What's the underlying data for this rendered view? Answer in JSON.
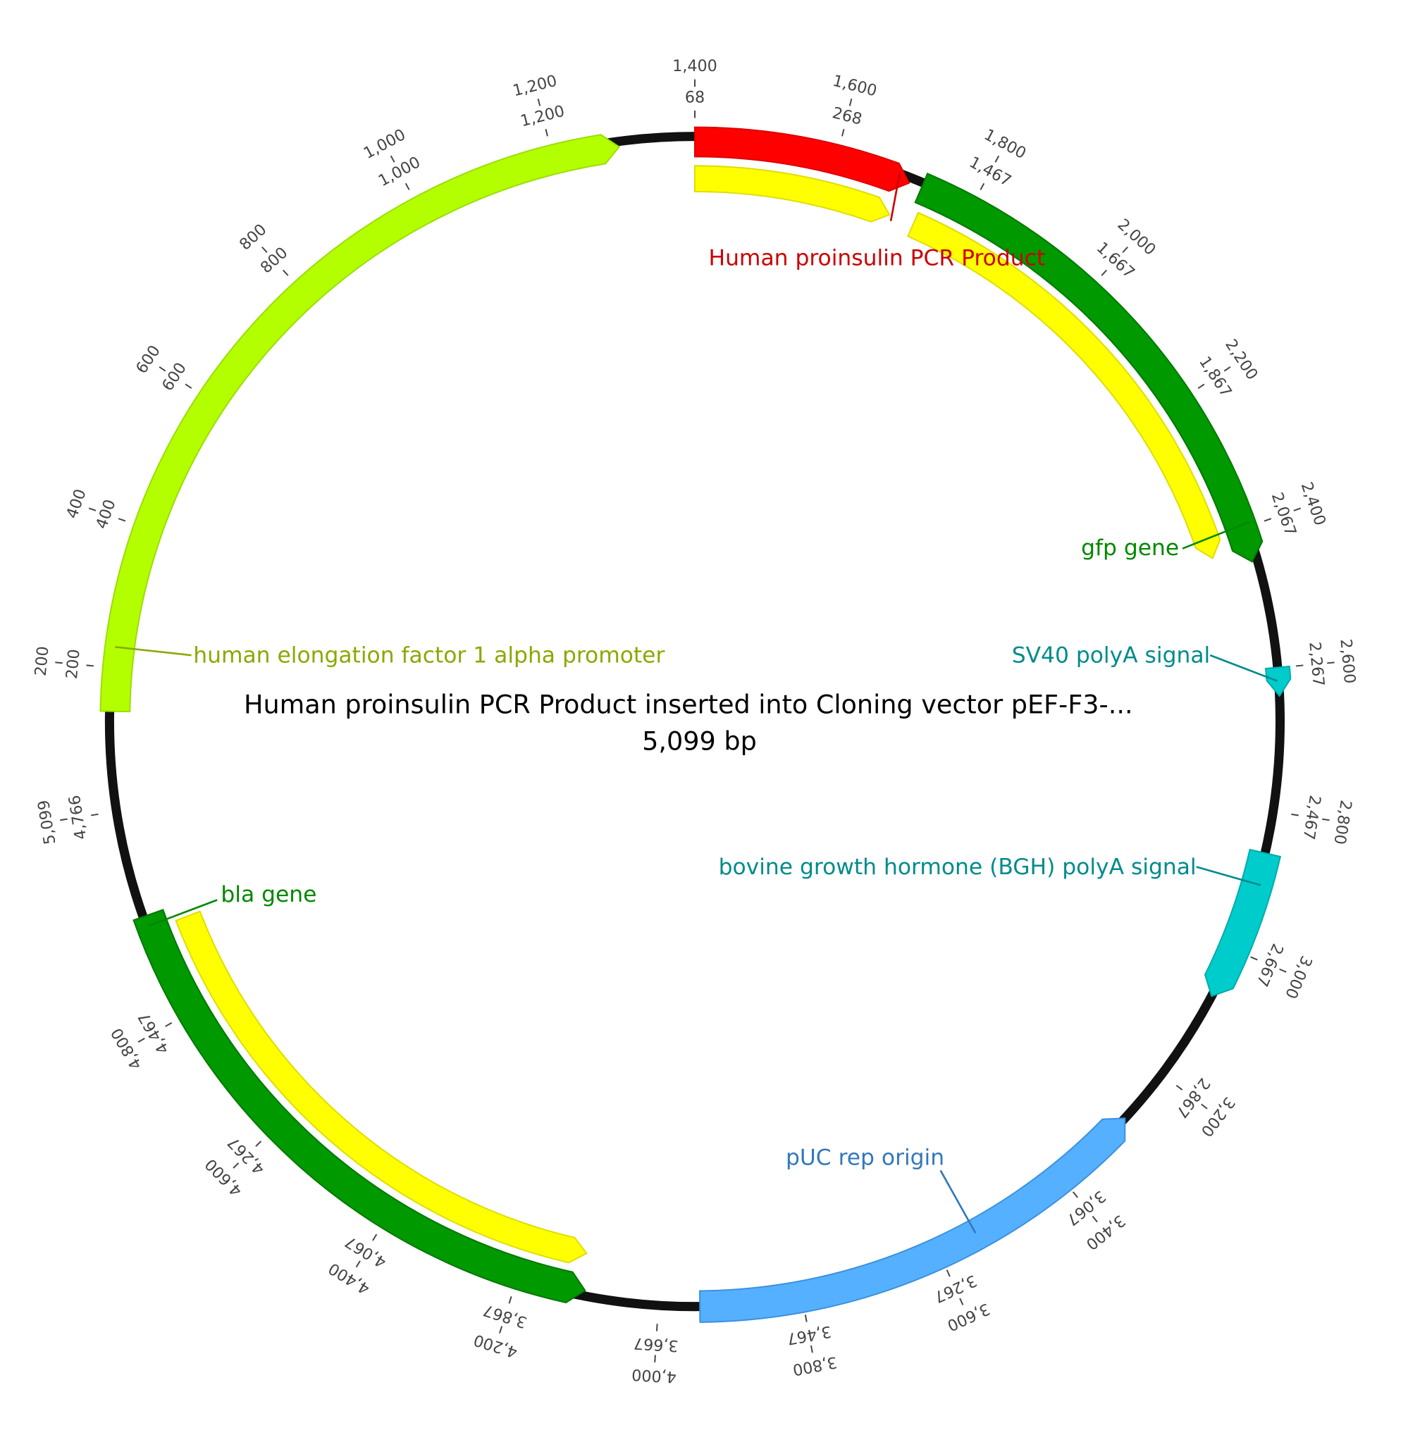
{
  "title": "Human proinsulin PCR Product inserted into Cloning vector pEF-F3-...",
  "size": "5,099 bp",
  "features": [
    {
      "label": "Human proinsulin PCR Product"
    },
    {
      "label": "gfp gene"
    },
    {
      "label": "SV40 polyA signal"
    },
    {
      "label": "bovine growth hormone (BGH) polyA signal"
    },
    {
      "label": "pUC rep origin"
    },
    {
      "label": "bla gene"
    },
    {
      "label": "human elongation factor 1 alpha promoter"
    }
  ],
  "ticks": [
    {
      "outer": "200",
      "inner": "200"
    },
    {
      "outer": "400",
      "inner": "400"
    },
    {
      "outer": "600",
      "inner": "600"
    },
    {
      "outer": "800",
      "inner": "800"
    },
    {
      "outer": "1,000",
      "inner": "1,000"
    },
    {
      "outer": "1,200",
      "inner": "1,200"
    },
    {
      "outer": "1,400",
      "inner": "68"
    },
    {
      "outer": "1,600",
      "inner": "268"
    },
    {
      "outer": "1,800",
      "inner": "1,467"
    },
    {
      "outer": "2,000",
      "inner": "1,667"
    },
    {
      "outer": "2,200",
      "inner": "1,867"
    },
    {
      "outer": "2,400",
      "inner": "2,067"
    },
    {
      "outer": "2,600",
      "inner": "2,267"
    },
    {
      "outer": "2,800",
      "inner": "2,467"
    },
    {
      "outer": "3,000",
      "inner": "2,667"
    },
    {
      "outer": "3,200",
      "inner": "2,867"
    },
    {
      "outer": "3,400",
      "inner": "3,067"
    },
    {
      "outer": "3,600",
      "inner": "3,267"
    },
    {
      "outer": "3,800",
      "inner": "3,467"
    },
    {
      "outer": "4,000",
      "inner": "3,667"
    },
    {
      "outer": "4,200",
      "inner": "3,867"
    },
    {
      "outer": "4,400",
      "inner": "4,067"
    },
    {
      "outer": "4,600",
      "inner": "4,267"
    },
    {
      "outer": "4,800",
      "inner": "4,467"
    },
    {
      "outer": "5,099",
      "inner": "4,766"
    }
  ]
}
